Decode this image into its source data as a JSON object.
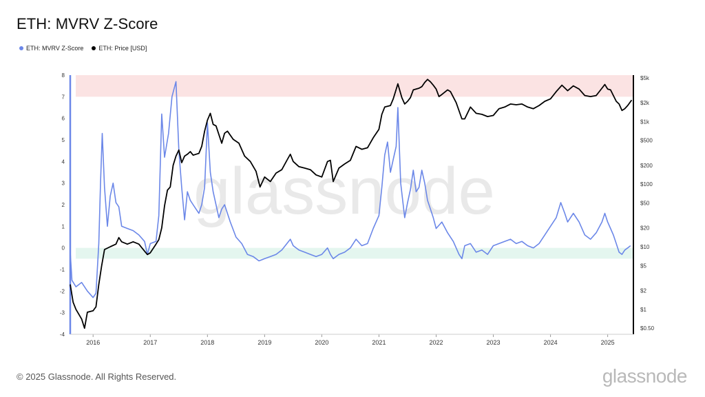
{
  "header": {
    "title": "ETH: MVRV Z-Score"
  },
  "legend": {
    "items": [
      {
        "label": "ETH: MVRV Z-Score",
        "color": "#6b87e8"
      },
      {
        "label": "ETH: Price [USD]",
        "color": "#000000"
      }
    ]
  },
  "footer": {
    "copyright": "© 2025 Glassnode. All Rights Reserved.",
    "brand": "glassnode"
  },
  "watermark": "glassnode",
  "chart_data": {
    "type": "line",
    "colors": {
      "zscore": "#6b87e8",
      "price": "#000000",
      "top_band": "#fbe3e3",
      "bottom_band": "#e4f6ef"
    },
    "left_axis": {
      "ylim": [
        -4,
        8
      ],
      "ticks": [
        "8",
        "7",
        "6",
        "5",
        "4",
        "3",
        "2",
        "1",
        "0",
        "-1",
        "-2",
        "-3",
        "-4"
      ]
    },
    "right_axis": {
      "scale": "log",
      "ylim": [
        0.4,
        5500
      ],
      "ticks": [
        {
          "value": 5000,
          "label": "$5k"
        },
        {
          "value": 2000,
          "label": "$2k"
        },
        {
          "value": 1000,
          "label": "$1k"
        },
        {
          "value": 500,
          "label": "$500"
        },
        {
          "value": 200,
          "label": "$200"
        },
        {
          "value": 100,
          "label": "$100"
        },
        {
          "value": 50,
          "label": "$50"
        },
        {
          "value": 20,
          "label": "$20"
        },
        {
          "value": 10,
          "label": "$10"
        },
        {
          "value": 5,
          "label": "$5"
        },
        {
          "value": 2,
          "label": "$2"
        },
        {
          "value": 1,
          "label": "$1"
        },
        {
          "value": 0.5,
          "label": "$0.50"
        }
      ]
    },
    "x_axis": {
      "xlim": [
        2015.6,
        2025.45
      ],
      "ticks": [
        "2016",
        "2017",
        "2018",
        "2019",
        "2020",
        "2021",
        "2022",
        "2023",
        "2024",
        "2025"
      ]
    },
    "bands": [
      {
        "from": 7,
        "to": 8,
        "zone": "top"
      },
      {
        "from": -0.5,
        "to": 0,
        "zone": "bottom"
      }
    ],
    "series": [
      {
        "name": "ETH: MVRV Z-Score",
        "axis": "left",
        "points": [
          [
            2015.6,
            -0.2
          ],
          [
            2015.63,
            -1.5
          ],
          [
            2015.7,
            -1.8
          ],
          [
            2015.8,
            -1.6
          ],
          [
            2015.9,
            -2.0
          ],
          [
            2016.0,
            -2.3
          ],
          [
            2016.05,
            -2.1
          ],
          [
            2016.1,
            0.2
          ],
          [
            2016.13,
            3.0
          ],
          [
            2016.16,
            5.3
          ],
          [
            2016.2,
            2.8
          ],
          [
            2016.25,
            1.0
          ],
          [
            2016.3,
            2.4
          ],
          [
            2016.35,
            3.0
          ],
          [
            2016.4,
            2.1
          ],
          [
            2016.45,
            1.9
          ],
          [
            2016.5,
            1.0
          ],
          [
            2016.6,
            0.9
          ],
          [
            2016.7,
            0.8
          ],
          [
            2016.8,
            0.6
          ],
          [
            2016.9,
            0.3
          ],
          [
            2016.95,
            -0.3
          ],
          [
            2017.0,
            0.2
          ],
          [
            2017.1,
            0.3
          ],
          [
            2017.15,
            1.5
          ],
          [
            2017.2,
            6.2
          ],
          [
            2017.25,
            4.2
          ],
          [
            2017.32,
            5.3
          ],
          [
            2017.38,
            7.0
          ],
          [
            2017.45,
            7.7
          ],
          [
            2017.5,
            4.5
          ],
          [
            2017.55,
            2.8
          ],
          [
            2017.6,
            1.3
          ],
          [
            2017.65,
            2.6
          ],
          [
            2017.7,
            2.2
          ],
          [
            2017.75,
            2.0
          ],
          [
            2017.8,
            1.8
          ],
          [
            2017.85,
            1.6
          ],
          [
            2017.9,
            2.0
          ],
          [
            2017.95,
            2.8
          ],
          [
            2018.0,
            5.8
          ],
          [
            2018.05,
            3.5
          ],
          [
            2018.1,
            2.6
          ],
          [
            2018.2,
            1.4
          ],
          [
            2018.25,
            1.8
          ],
          [
            2018.3,
            2.0
          ],
          [
            2018.4,
            1.2
          ],
          [
            2018.5,
            0.5
          ],
          [
            2018.6,
            0.2
          ],
          [
            2018.7,
            -0.3
          ],
          [
            2018.8,
            -0.4
          ],
          [
            2018.9,
            -0.6
          ],
          [
            2019.0,
            -0.5
          ],
          [
            2019.1,
            -0.4
          ],
          [
            2019.2,
            -0.3
          ],
          [
            2019.3,
            -0.1
          ],
          [
            2019.45,
            0.4
          ],
          [
            2019.5,
            0.1
          ],
          [
            2019.6,
            -0.1
          ],
          [
            2019.7,
            -0.2
          ],
          [
            2019.8,
            -0.3
          ],
          [
            2019.9,
            -0.4
          ],
          [
            2020.0,
            -0.3
          ],
          [
            2020.1,
            0.0
          ],
          [
            2020.15,
            -0.3
          ],
          [
            2020.2,
            -0.5
          ],
          [
            2020.3,
            -0.3
          ],
          [
            2020.4,
            -0.2
          ],
          [
            2020.5,
            0.0
          ],
          [
            2020.6,
            0.4
          ],
          [
            2020.7,
            0.1
          ],
          [
            2020.8,
            0.2
          ],
          [
            2020.9,
            0.9
          ],
          [
            2021.0,
            1.5
          ],
          [
            2021.05,
            2.8
          ],
          [
            2021.1,
            4.3
          ],
          [
            2021.15,
            4.9
          ],
          [
            2021.2,
            3.5
          ],
          [
            2021.25,
            4.1
          ],
          [
            2021.3,
            4.7
          ],
          [
            2021.33,
            6.5
          ],
          [
            2021.38,
            3.0
          ],
          [
            2021.45,
            1.4
          ],
          [
            2021.5,
            2.1
          ],
          [
            2021.55,
            2.7
          ],
          [
            2021.6,
            3.6
          ],
          [
            2021.65,
            2.6
          ],
          [
            2021.7,
            2.8
          ],
          [
            2021.75,
            3.6
          ],
          [
            2021.8,
            3.0
          ],
          [
            2021.85,
            2.2
          ],
          [
            2021.9,
            1.8
          ],
          [
            2021.95,
            1.4
          ],
          [
            2022.0,
            0.9
          ],
          [
            2022.1,
            1.2
          ],
          [
            2022.2,
            0.7
          ],
          [
            2022.3,
            0.3
          ],
          [
            2022.4,
            -0.3
          ],
          [
            2022.45,
            -0.5
          ],
          [
            2022.5,
            0.1
          ],
          [
            2022.6,
            0.2
          ],
          [
            2022.7,
            -0.2
          ],
          [
            2022.8,
            -0.1
          ],
          [
            2022.9,
            -0.3
          ],
          [
            2023.0,
            0.1
          ],
          [
            2023.1,
            0.2
          ],
          [
            2023.2,
            0.3
          ],
          [
            2023.3,
            0.4
          ],
          [
            2023.4,
            0.2
          ],
          [
            2023.5,
            0.3
          ],
          [
            2023.6,
            0.1
          ],
          [
            2023.7,
            0.0
          ],
          [
            2023.8,
            0.2
          ],
          [
            2023.9,
            0.6
          ],
          [
            2024.0,
            1.0
          ],
          [
            2024.1,
            1.4
          ],
          [
            2024.18,
            2.1
          ],
          [
            2024.25,
            1.6
          ],
          [
            2024.3,
            1.2
          ],
          [
            2024.4,
            1.6
          ],
          [
            2024.5,
            1.2
          ],
          [
            2024.6,
            0.6
          ],
          [
            2024.7,
            0.4
          ],
          [
            2024.8,
            0.7
          ],
          [
            2024.9,
            1.2
          ],
          [
            2024.95,
            1.6
          ],
          [
            2025.0,
            1.2
          ],
          [
            2025.05,
            0.9
          ],
          [
            2025.1,
            0.6
          ],
          [
            2025.15,
            0.2
          ],
          [
            2025.2,
            -0.2
          ],
          [
            2025.25,
            -0.3
          ],
          [
            2025.3,
            -0.1
          ],
          [
            2025.35,
            0.0
          ],
          [
            2025.4,
            0.1
          ]
        ]
      },
      {
        "name": "ETH: Price [USD]",
        "axis": "right",
        "points": [
          [
            2015.6,
            2.5
          ],
          [
            2015.65,
            1.3
          ],
          [
            2015.7,
            1.0
          ],
          [
            2015.8,
            0.7
          ],
          [
            2015.85,
            0.5
          ],
          [
            2015.9,
            0.9
          ],
          [
            2016.0,
            0.95
          ],
          [
            2016.05,
            1.1
          ],
          [
            2016.1,
            2.5
          ],
          [
            2016.15,
            5.0
          ],
          [
            2016.2,
            9.0
          ],
          [
            2016.3,
            10.0
          ],
          [
            2016.4,
            11.0
          ],
          [
            2016.45,
            14.0
          ],
          [
            2016.5,
            12.0
          ],
          [
            2016.6,
            11.0
          ],
          [
            2016.7,
            12.0
          ],
          [
            2016.8,
            11.0
          ],
          [
            2016.9,
            8.5
          ],
          [
            2016.95,
            7.5
          ],
          [
            2017.0,
            8.0
          ],
          [
            2017.1,
            11.0
          ],
          [
            2017.15,
            13.0
          ],
          [
            2017.2,
            20.0
          ],
          [
            2017.25,
            45.0
          ],
          [
            2017.3,
            80.0
          ],
          [
            2017.35,
            90.0
          ],
          [
            2017.4,
            200.0
          ],
          [
            2017.45,
            280.0
          ],
          [
            2017.5,
            350.0
          ],
          [
            2017.55,
            220.0
          ],
          [
            2017.6,
            280.0
          ],
          [
            2017.65,
            300.0
          ],
          [
            2017.7,
            330.0
          ],
          [
            2017.75,
            290.0
          ],
          [
            2017.8,
            300.0
          ],
          [
            2017.85,
            310.0
          ],
          [
            2017.9,
            400.0
          ],
          [
            2017.95,
            700.0
          ],
          [
            2018.0,
            1050.0
          ],
          [
            2018.05,
            1350.0
          ],
          [
            2018.1,
            900.0
          ],
          [
            2018.15,
            850.0
          ],
          [
            2018.25,
            450.0
          ],
          [
            2018.3,
            650.0
          ],
          [
            2018.35,
            700.0
          ],
          [
            2018.45,
            520.0
          ],
          [
            2018.55,
            450.0
          ],
          [
            2018.65,
            280.0
          ],
          [
            2018.75,
            230.0
          ],
          [
            2018.85,
            160.0
          ],
          [
            2018.92,
            90.0
          ],
          [
            2019.0,
            130.0
          ],
          [
            2019.1,
            110.0
          ],
          [
            2019.2,
            150.0
          ],
          [
            2019.3,
            170.0
          ],
          [
            2019.4,
            250.0
          ],
          [
            2019.45,
            300.0
          ],
          [
            2019.5,
            230.0
          ],
          [
            2019.6,
            190.0
          ],
          [
            2019.7,
            180.0
          ],
          [
            2019.8,
            170.0
          ],
          [
            2019.9,
            140.0
          ],
          [
            2020.0,
            130.0
          ],
          [
            2020.1,
            230.0
          ],
          [
            2020.15,
            240.0
          ],
          [
            2020.2,
            110.0
          ],
          [
            2020.3,
            180.0
          ],
          [
            2020.4,
            210.0
          ],
          [
            2020.5,
            240.0
          ],
          [
            2020.6,
            400.0
          ],
          [
            2020.7,
            360.0
          ],
          [
            2020.8,
            380.0
          ],
          [
            2020.9,
            550.0
          ],
          [
            2021.0,
            750.0
          ],
          [
            2021.05,
            1300.0
          ],
          [
            2021.1,
            1700.0
          ],
          [
            2021.2,
            1800.0
          ],
          [
            2021.25,
            2300.0
          ],
          [
            2021.33,
            4000.0
          ],
          [
            2021.4,
            2400.0
          ],
          [
            2021.45,
            1900.0
          ],
          [
            2021.5,
            2100.0
          ],
          [
            2021.55,
            2400.0
          ],
          [
            2021.6,
            3200.0
          ],
          [
            2021.7,
            3400.0
          ],
          [
            2021.75,
            3600.0
          ],
          [
            2021.8,
            4200.0
          ],
          [
            2021.85,
            4700.0
          ],
          [
            2021.9,
            4300.0
          ],
          [
            2021.95,
            3800.0
          ],
          [
            2022.0,
            3300.0
          ],
          [
            2022.05,
            2500.0
          ],
          [
            2022.1,
            2700.0
          ],
          [
            2022.2,
            3200.0
          ],
          [
            2022.25,
            3000.0
          ],
          [
            2022.35,
            2000.0
          ],
          [
            2022.45,
            1100.0
          ],
          [
            2022.5,
            1100.0
          ],
          [
            2022.6,
            1700.0
          ],
          [
            2022.7,
            1350.0
          ],
          [
            2022.8,
            1300.0
          ],
          [
            2022.85,
            1250.0
          ],
          [
            2022.9,
            1200.0
          ],
          [
            2023.0,
            1250.0
          ],
          [
            2023.1,
            1600.0
          ],
          [
            2023.2,
            1700.0
          ],
          [
            2023.3,
            1900.0
          ],
          [
            2023.4,
            1850.0
          ],
          [
            2023.5,
            1900.0
          ],
          [
            2023.6,
            1700.0
          ],
          [
            2023.7,
            1600.0
          ],
          [
            2023.8,
            1800.0
          ],
          [
            2023.9,
            2100.0
          ],
          [
            2024.0,
            2300.0
          ],
          [
            2024.1,
            3000.0
          ],
          [
            2024.2,
            3800.0
          ],
          [
            2024.3,
            3100.0
          ],
          [
            2024.4,
            3700.0
          ],
          [
            2024.5,
            3300.0
          ],
          [
            2024.6,
            2600.0
          ],
          [
            2024.7,
            2500.0
          ],
          [
            2024.8,
            2600.0
          ],
          [
            2024.9,
            3400.0
          ],
          [
            2024.95,
            3900.0
          ],
          [
            2025.0,
            3300.0
          ],
          [
            2025.05,
            3200.0
          ],
          [
            2025.1,
            2600.0
          ],
          [
            2025.15,
            2100.0
          ],
          [
            2025.2,
            1900.0
          ],
          [
            2025.25,
            1500.0
          ],
          [
            2025.3,
            1600.0
          ],
          [
            2025.35,
            1800.0
          ],
          [
            2025.42,
            2200.0
          ]
        ]
      }
    ]
  }
}
